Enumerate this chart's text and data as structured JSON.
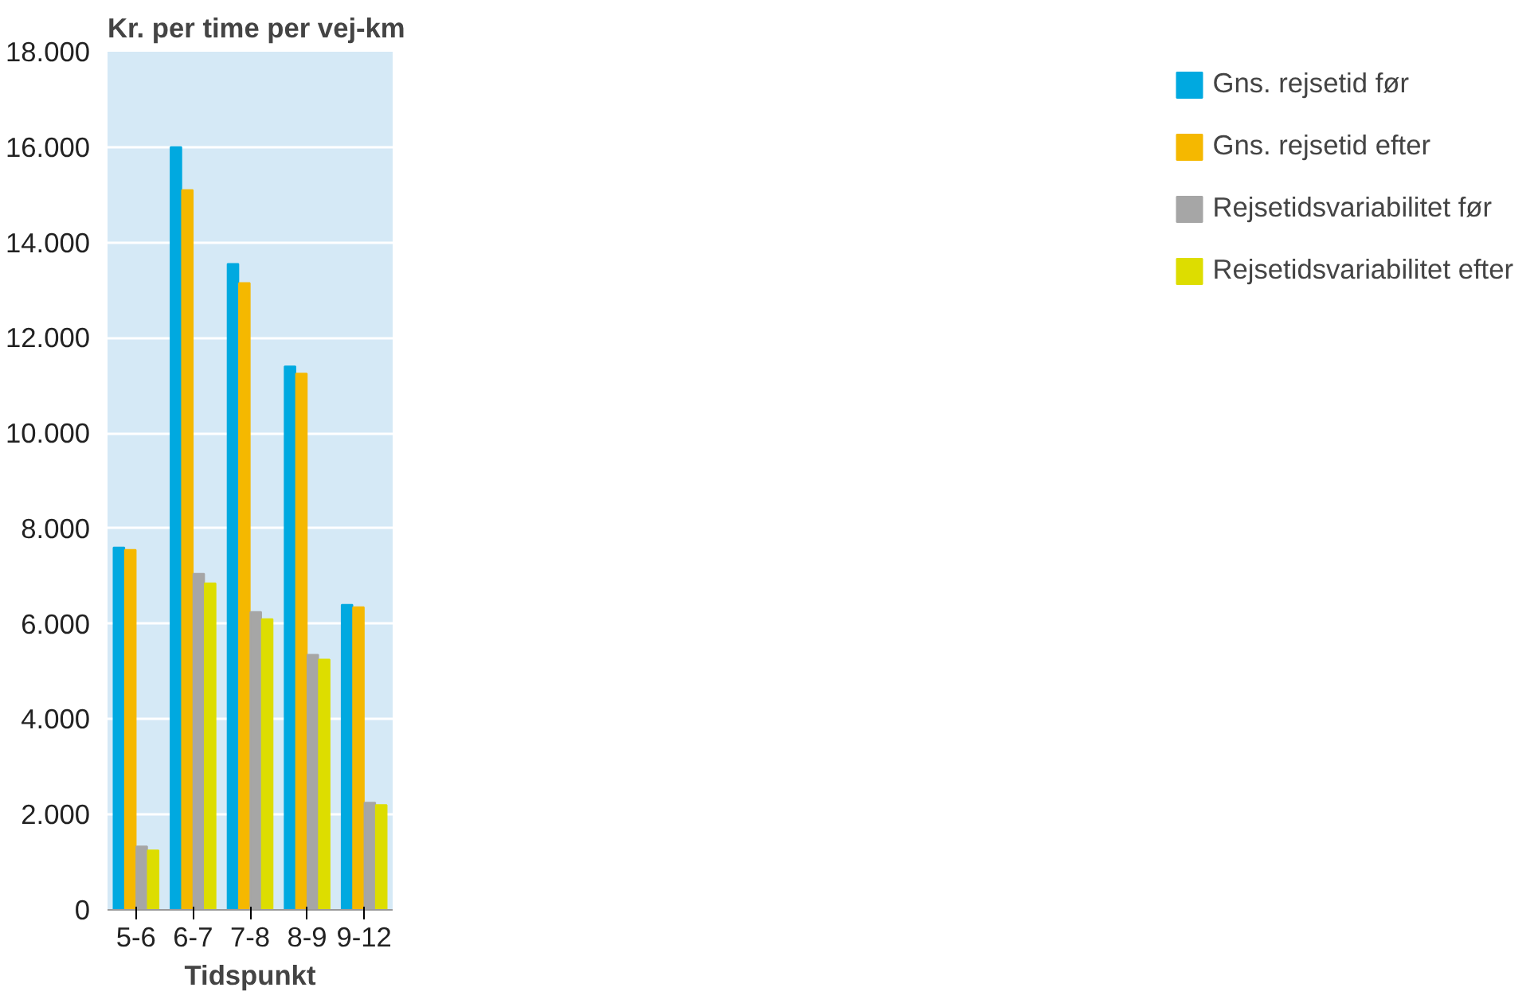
{
  "chart_data": {
    "type": "bar",
    "ylabel": "Kr. per time per vej-km",
    "xlabel": "Tidspunkt",
    "categories": [
      "5-6",
      "6-7",
      "7-8",
      "8-9",
      "9-12"
    ],
    "series": [
      {
        "name": "Gns. rejsetid før",
        "color": "#00a9e0",
        "values": [
          7600,
          16000,
          13550,
          11400,
          6400
        ]
      },
      {
        "name": "Gns. rejsetid efter",
        "color": "#f5b800",
        "values": [
          7550,
          15100,
          13150,
          11250,
          6350
        ]
      },
      {
        "name": "Rejsetidsvariabilitet før",
        "color": "#a6a6a6",
        "values": [
          1330,
          7050,
          6250,
          5350,
          2250
        ]
      },
      {
        "name": "Rejsetidsvariabilitet efter",
        "color": "#dddd00",
        "values": [
          1250,
          6850,
          6100,
          5250,
          2200
        ]
      }
    ],
    "ylim": [
      0,
      18000
    ],
    "yticks": [
      0,
      {
        "value": 2000,
        "label": "2.000"
      },
      {
        "value": 4000,
        "label": "4.000"
      },
      {
        "value": 6000,
        "label": "6.000"
      },
      {
        "value": 8000,
        "label": "8.000"
      },
      {
        "value": 10000,
        "label": "10.000"
      },
      {
        "value": 12000,
        "label": "12.000"
      },
      {
        "value": 14000,
        "label": "14.000"
      },
      {
        "value": 16000,
        "label": "16.000"
      },
      {
        "value": 18000,
        "label": "18.000"
      }
    ],
    "grid": "y",
    "legend": "right"
  }
}
